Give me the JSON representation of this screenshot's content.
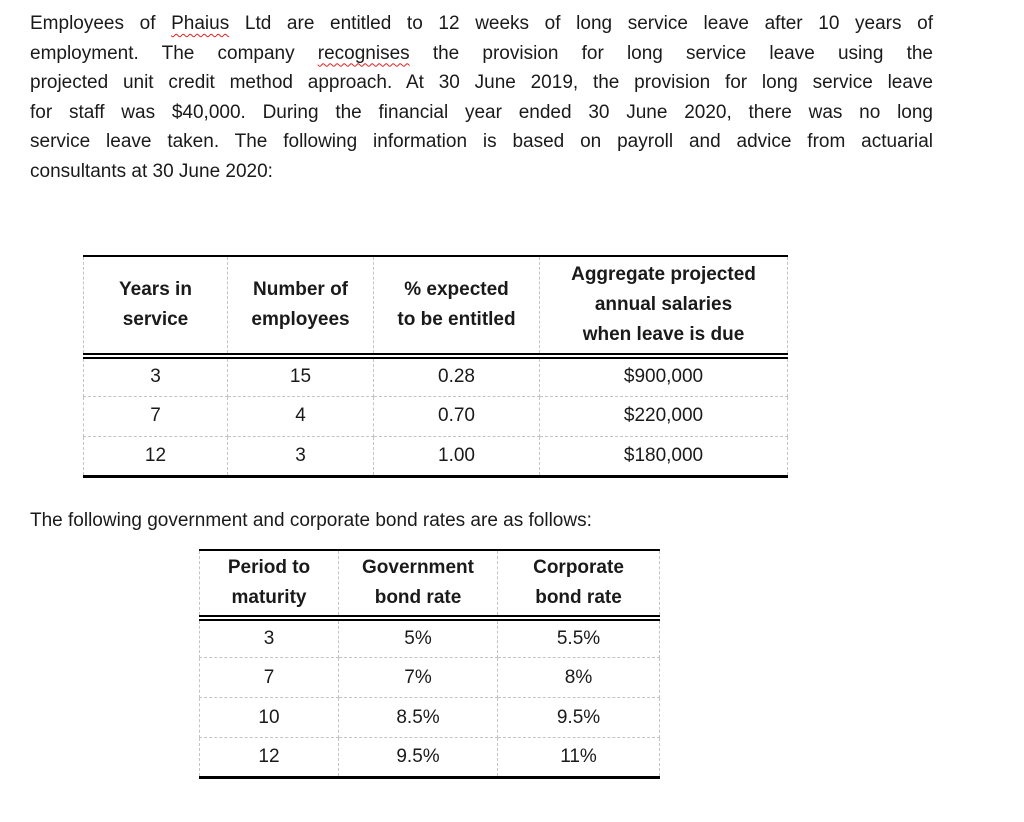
{
  "intro_paragraph": {
    "lines": [
      {
        "justify": true,
        "segments": [
          {
            "text": "Employees of "
          },
          {
            "text": "Phaius",
            "spellcheck": true
          },
          {
            "text": " Ltd are entitled to 12 weeks of long service leave after 10 years of"
          }
        ]
      },
      {
        "justify": true,
        "segments": [
          {
            "text": "employment. The company "
          },
          {
            "text": "recognises",
            "spellcheck": true
          },
          {
            "text": " the provision for long service leave using the"
          }
        ]
      },
      {
        "justify": true,
        "segments": [
          {
            "text": "projected unit credit method approach. At 30 June 2019, the provision for long service leave"
          }
        ]
      },
      {
        "justify": true,
        "segments": [
          {
            "text": "for staff was $40,000. During the financial year ended 30 June 2020, there was no long"
          }
        ]
      },
      {
        "justify": true,
        "segments": [
          {
            "text": "service leave taken. The following information is based on payroll and advice from actuarial"
          }
        ]
      },
      {
        "justify": false,
        "segments": [
          {
            "text": "consultants at 30 June 2020:"
          }
        ]
      }
    ]
  },
  "salary_table": {
    "headers": [
      [
        "Years in",
        "service"
      ],
      [
        "Number of",
        "employees"
      ],
      [
        "% expected",
        "to be entitled"
      ],
      [
        "Aggregate projected",
        "annual salaries",
        "when leave is due"
      ]
    ],
    "rows": [
      [
        "3",
        "15",
        "0.28",
        "$900,000"
      ],
      [
        "7",
        "4",
        "0.70",
        "$220,000"
      ],
      [
        "12",
        "3",
        "1.00",
        "$180,000"
      ]
    ]
  },
  "bond_intro": "The following government and corporate bond rates are as follows:",
  "bond_table": {
    "headers": [
      [
        "Period to",
        "maturity"
      ],
      [
        "Government",
        "bond rate"
      ],
      [
        "Corporate",
        "bond rate"
      ]
    ],
    "rows": [
      [
        "3",
        "5%",
        "5.5%"
      ],
      [
        "7",
        "7%",
        "8%"
      ],
      [
        "10",
        "8.5%",
        "9.5%"
      ],
      [
        "12",
        "9.5%",
        "11%"
      ]
    ]
  },
  "colors": {
    "text": "#1a1a1a",
    "solid_border": "#000000",
    "dashed_border": "#c4c4c4",
    "spellcheck_underline": "#e02020",
    "page_background": "#ffffff"
  }
}
